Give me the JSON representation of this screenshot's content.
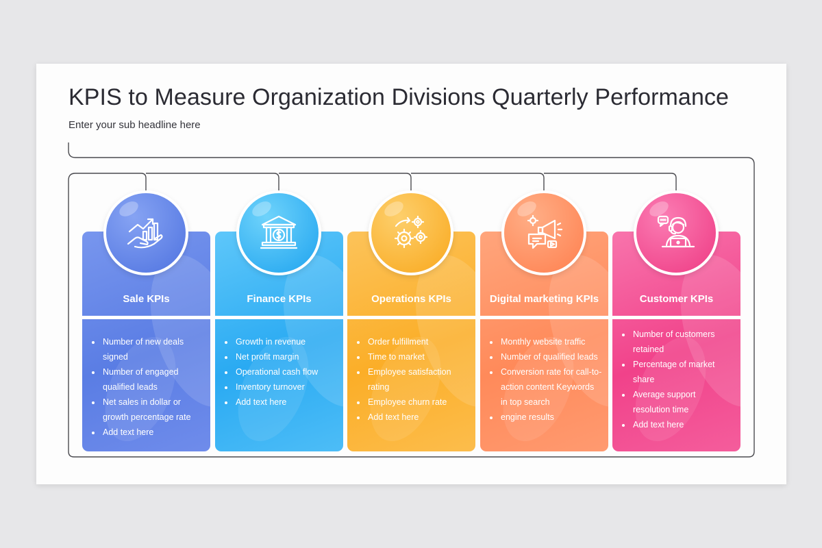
{
  "title": "KPIS to Measure Organization Divisions Quarterly Performance",
  "subtitle": "Enter your sub headline here",
  "colors": {
    "sale": [
      "#5c7fe6",
      "#7f9af0"
    ],
    "finance": [
      "#2fb0f3",
      "#66ccf9"
    ],
    "operations": [
      "#fbb12d",
      "#fcc765"
    ],
    "digital": [
      "#ff8c5e",
      "#ffa77f"
    ],
    "customer": [
      "#f2468d",
      "#f776ad"
    ]
  },
  "cards": [
    {
      "id": "sale",
      "heading": "Sale KPIs",
      "icon": "sales-growth-hand-icon",
      "items": [
        "Number of new deals signed",
        "Number of engaged qualified leads",
        "Net sales in dollar or growth percentage rate",
        "Add text here"
      ]
    },
    {
      "id": "finance",
      "heading": "Finance KPIs",
      "icon": "bank-dollar-icon",
      "items": [
        "Growth in revenue",
        "Net profit margin",
        "Operational cash flow",
        "Inventory turnover",
        "Add text here"
      ]
    },
    {
      "id": "operations",
      "heading": "Operations KPIs",
      "icon": "gears-icon",
      "items": [
        "Order fulfillment",
        "Time to market",
        "Employee satisfaction rating",
        "Employee churn rate",
        "Add text here"
      ]
    },
    {
      "id": "digital",
      "heading": "Digital marketing KPIs",
      "icon": "megaphone-gear-icon",
      "items": [
        "Monthly website traffic",
        "Number of qualified leads",
        "Conversion rate for call-to-action content Keywords in top search",
        "engine results"
      ]
    },
    {
      "id": "customer",
      "heading": "Customer KPIs",
      "icon": "customer-support-agent-icon",
      "items": [
        "Number of customers retained",
        "Percentage of market share",
        "Average support resolution time",
        "Add text here"
      ]
    }
  ]
}
